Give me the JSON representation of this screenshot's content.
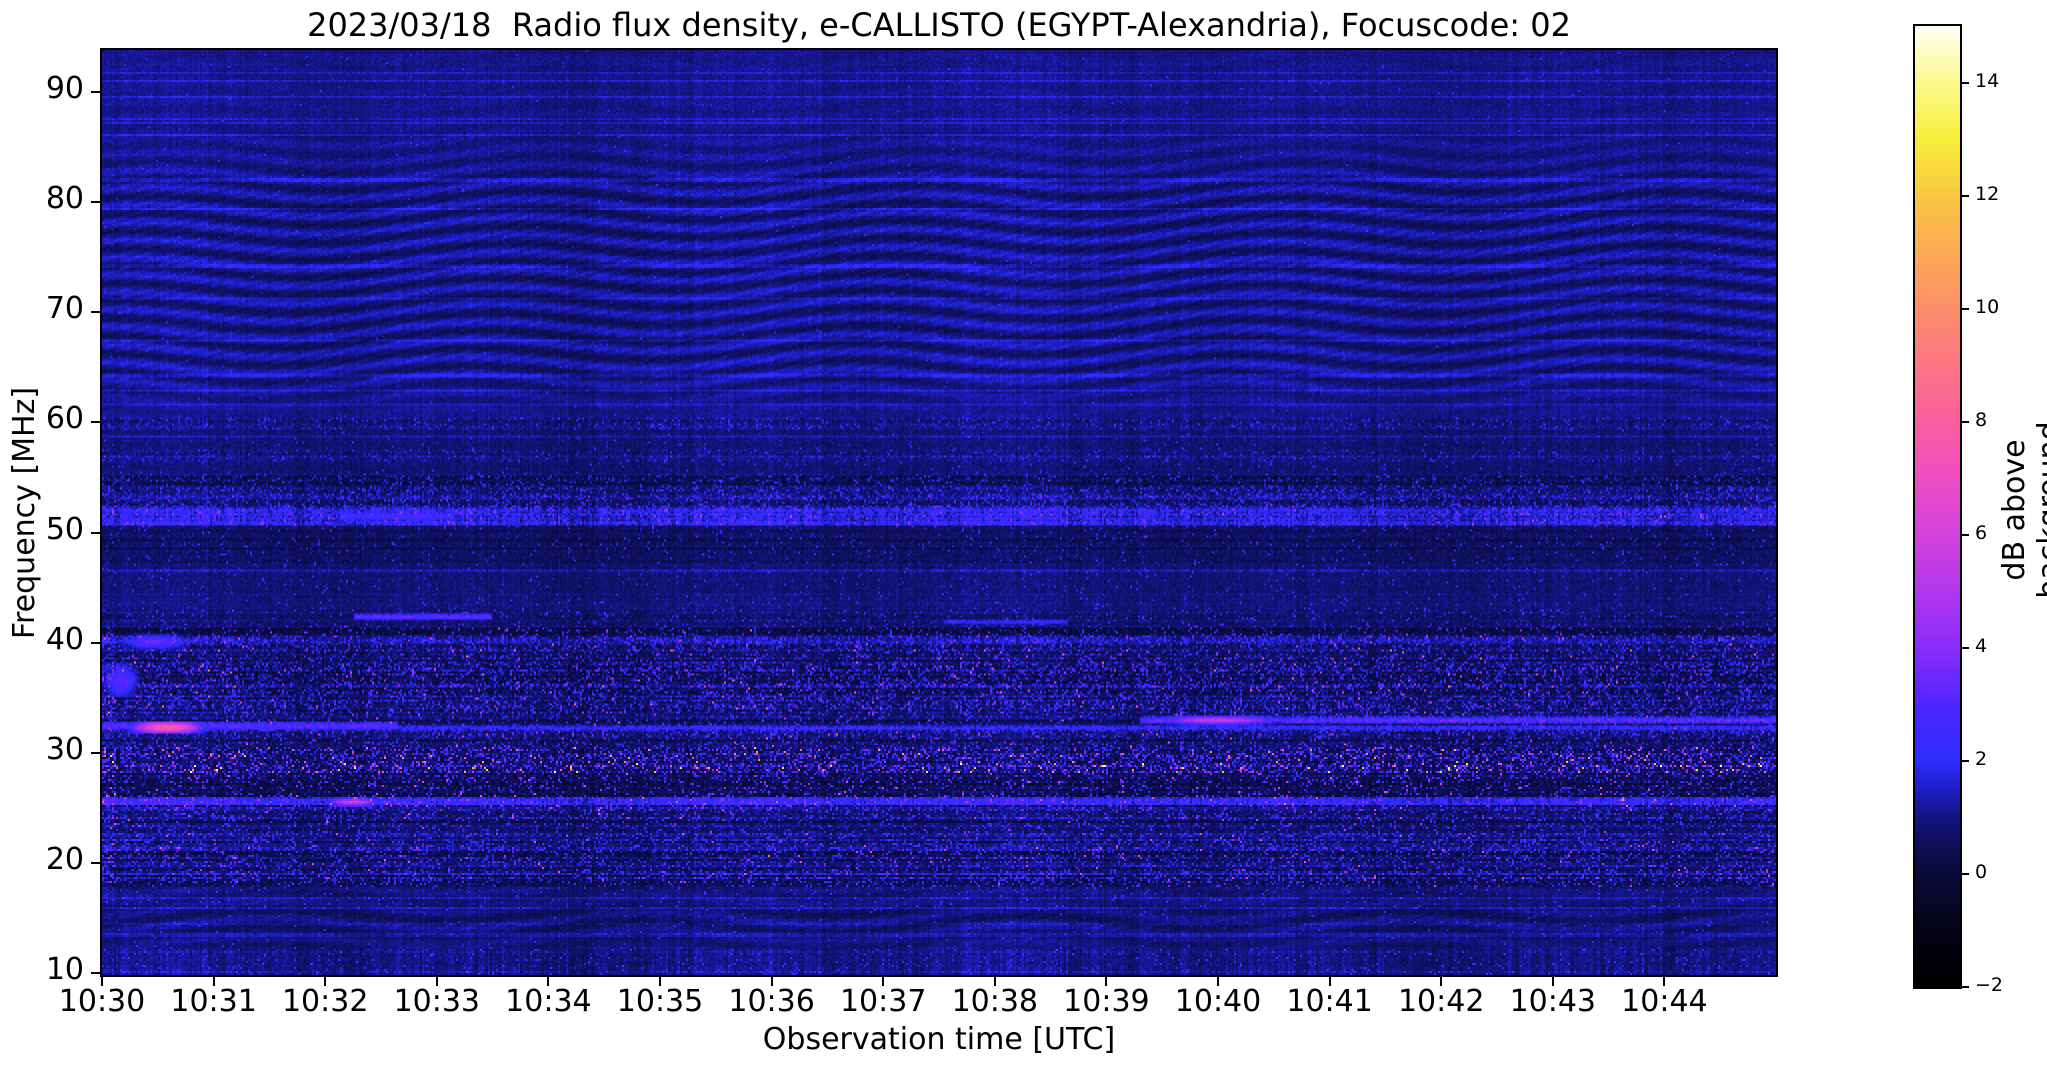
{
  "chart_data": {
    "type": "heatmap",
    "title": "2023/03/18  Radio flux density, e-CALLISTO (EGYPT-Alexandria), Focuscode: 02",
    "xlabel": "Observation time [UTC]",
    "ylabel": "Frequency [MHz]",
    "x_tick_labels": [
      "10:30",
      "10:31",
      "10:32",
      "10:33",
      "10:34",
      "10:35",
      "10:36",
      "10:37",
      "10:38",
      "10:39",
      "10:40",
      "10:41",
      "10:42",
      "10:43",
      "10:44"
    ],
    "x_range_minutes": [
      0,
      15
    ],
    "y_ticks": [
      90,
      80,
      70,
      60,
      50,
      40,
      30,
      20,
      10
    ],
    "y_range_mhz": [
      9.85,
      93.8
    ],
    "legend_position": "right-colorbar",
    "grid": false,
    "colorbar": {
      "label": "dB above background",
      "tick_values": [
        14,
        12,
        10,
        8,
        6,
        4,
        2,
        0,
        -2
      ],
      "tick_labels": [
        "14",
        "12",
        "10",
        "8",
        "6",
        "4",
        "2",
        "0",
        "−2"
      ],
      "vmin": -2,
      "vmax": 15
    },
    "colormap_anchors": [
      [
        -2,
        [
          0,
          0,
          0
        ]
      ],
      [
        -1,
        [
          3,
          3,
          22
        ]
      ],
      [
        0,
        [
          10,
          10,
          58
        ]
      ],
      [
        0.5,
        [
          14,
          14,
          85
        ]
      ],
      [
        1,
        [
          20,
          20,
          130
        ]
      ],
      [
        1.5,
        [
          30,
          30,
          195
        ]
      ],
      [
        2,
        [
          45,
          45,
          255
        ]
      ],
      [
        3,
        [
          80,
          38,
          255
        ]
      ],
      [
        4,
        [
          138,
          45,
          250
        ]
      ],
      [
        5,
        [
          178,
          55,
          238
        ]
      ],
      [
        6,
        [
          212,
          66,
          222
        ]
      ],
      [
        7,
        [
          238,
          78,
          195
        ]
      ],
      [
        8,
        [
          250,
          95,
          160
        ]
      ],
      [
        9,
        [
          252,
          118,
          132
        ]
      ],
      [
        10,
        [
          253,
          142,
          108
        ]
      ],
      [
        11,
        [
          252,
          170,
          85
        ]
      ],
      [
        12,
        [
          250,
          200,
          65
        ]
      ],
      [
        13,
        [
          248,
          238,
          60
        ]
      ],
      [
        14,
        [
          252,
          248,
          140
        ]
      ],
      [
        15,
        [
          255,
          255,
          245
        ]
      ]
    ],
    "noise_seed": 1337,
    "bands": [
      {
        "f": [
          9.8,
          12.2
        ],
        "base": 1.05,
        "noise": 0.55,
        "colVar": 0.5,
        "rowVar": 0.15,
        "speckle": 0.1,
        "speckleMax": 2.5
      },
      {
        "f": [
          12.2,
          13.8
        ],
        "base": 0.9,
        "noise": 0.4,
        "colVar": 0.3,
        "rowVar": 0.1,
        "speckle": 0.04,
        "speckleMax": 2,
        "ripple": 0.18
      },
      {
        "f": [
          13.8,
          15.6
        ],
        "base": 0.8,
        "noise": 0.45,
        "colVar": 0.3,
        "rowVar": 0.2,
        "speckle": 0.05,
        "speckleMax": 2,
        "ripple": 0.32
      },
      {
        "f": [
          15.6,
          17.8
        ],
        "base": 0.92,
        "noise": 0.45,
        "colVar": 0.3,
        "rowVar": 0.15,
        "speckle": 0.07,
        "speckleMax": 2.5,
        "ripple": 0.15
      },
      {
        "f": [
          17.8,
          21.5
        ],
        "base": 0.75,
        "noise": 0.95,
        "colVar": 0.4,
        "rowVar": 0.5,
        "speckle": 0.32,
        "speckleMax": 3.5,
        "hot": 0.01,
        "hotMax": 6,
        "darkRow": 0.18
      },
      {
        "f": [
          21.5,
          24.2
        ],
        "base": 0.85,
        "noise": 0.85,
        "colVar": 0.38,
        "rowVar": 0.4,
        "speckle": 0.28,
        "speckleMax": 3.2,
        "hot": 0.008,
        "hotMax": 5.5,
        "darkRow": 0.12
      },
      {
        "f": [
          24.2,
          25.2
        ],
        "base": 0.95,
        "noise": 0.9,
        "colVar": 0.38,
        "rowVar": 0.4,
        "speckle": 0.3,
        "speckleMax": 3.5,
        "hot": 0.01,
        "hotMax": 6
      },
      {
        "f": [
          25.2,
          25.9
        ],
        "base": 1.7,
        "noise": 0.9,
        "colVar": 0.32,
        "rowVar": 0.3,
        "speckle": 0.35,
        "speckleMax": 3,
        "hot": 0.015,
        "hotMax": 6.5
      },
      {
        "f": [
          25.9,
          28.1
        ],
        "base": 0.45,
        "noise": 1.1,
        "colVar": 0.6,
        "rowVar": 0.6,
        "speckle": 0.3,
        "speckleMax": 4,
        "hot": 0.02,
        "hotMax": 7,
        "darkRow": 0.25
      },
      {
        "f": [
          28.1,
          29.2
        ],
        "base": 0.7,
        "noise": 1.2,
        "colVar": 0.5,
        "rowVar": 0.5,
        "speckle": 0.45,
        "speckleMax": 5,
        "hot": 0.05,
        "hotMax": 13,
        "darkRow": 0.15
      },
      {
        "f": [
          29.2,
          30.6
        ],
        "base": 0.75,
        "noise": 1.1,
        "colVar": 0.45,
        "rowVar": 0.5,
        "speckle": 0.4,
        "speckleMax": 4.5,
        "hot": 0.03,
        "hotMax": 10,
        "darkRow": 0.15
      },
      {
        "f": [
          30.6,
          31.9
        ],
        "base": 0.65,
        "noise": 0.95,
        "colVar": 0.4,
        "rowVar": 0.45,
        "speckle": 0.3,
        "speckleMax": 3.5,
        "hot": 0.012,
        "hotMax": 8,
        "darkRow": 0.2
      },
      {
        "f": [
          31.9,
          33.6
        ],
        "base": 0.75,
        "noise": 0.8,
        "colVar": 0.4,
        "rowVar": 0.4,
        "speckle": 0.22,
        "speckleMax": 3,
        "hot": 0.006,
        "hotMax": 6,
        "darkRow": 0.25
      },
      {
        "f": [
          33.6,
          35.4
        ],
        "base": 0.8,
        "noise": 1.1,
        "colVar": 0.45,
        "rowVar": 0.5,
        "speckle": 0.35,
        "speckleMax": 3.8,
        "hot": 0.012,
        "hotMax": 7,
        "darkRow": 0.2
      },
      {
        "f": [
          35.4,
          38.2
        ],
        "base": 0.55,
        "noise": 1.25,
        "colVar": 0.6,
        "rowVar": 0.6,
        "speckle": 0.38,
        "speckleMax": 4,
        "hot": 0.01,
        "hotMax": 7,
        "darkRow": 0.3
      },
      {
        "f": [
          38.2,
          39.6
        ],
        "base": 0.75,
        "noise": 1.0,
        "colVar": 0.45,
        "rowVar": 0.45,
        "speckle": 0.28,
        "speckleMax": 3.5,
        "hot": 0.012,
        "hotMax": 7.5,
        "darkRow": 0.15
      },
      {
        "f": [
          39.6,
          40.6
        ],
        "base": 1.05,
        "noise": 1.0,
        "colVar": 0.4,
        "rowVar": 0.4,
        "speckle": 0.3,
        "speckleMax": 3.2,
        "hot": 0.008,
        "hotMax": 6,
        "darkRow": 0.1
      },
      {
        "f": [
          40.6,
          41.4
        ],
        "base": 0.15,
        "noise": 0.85,
        "colVar": 0.5,
        "rowVar": 0.5,
        "speckle": 0.28,
        "speckleMax": 3.5,
        "hot": 0.006,
        "hotMax": 6,
        "darkRow": 0.4
      },
      {
        "f": [
          41.4,
          43.1
        ],
        "base": 0.8,
        "noise": 0.65,
        "colVar": 0.35,
        "rowVar": 0.25,
        "speckle": 0.12,
        "speckleMax": 2.8
      },
      {
        "f": [
          43.1,
          47.2
        ],
        "base": 0.9,
        "noise": 0.5,
        "colVar": 0.3,
        "rowVar": 0.15,
        "speckle": 0.06,
        "speckleMax": 2.2
      },
      {
        "f": [
          47.2,
          50.6
        ],
        "base": 0.6,
        "noise": 0.6,
        "colVar": 0.35,
        "rowVar": 0.25,
        "speckle": 0.1,
        "speckleMax": 2.5,
        "darkRow": 0.1
      },
      {
        "f": [
          50.6,
          52.4
        ],
        "base": 1.6,
        "noise": 1.0,
        "colVar": 0.4,
        "rowVar": 0.35,
        "speckle": 0.4,
        "speckleMax": 3,
        "hot": 0.004,
        "hotMax": 5
      },
      {
        "f": [
          52.4,
          55.2
        ],
        "base": 0.85,
        "noise": 0.95,
        "colVar": 0.4,
        "rowVar": 0.45,
        "speckle": 0.3,
        "speckleMax": 3,
        "darkRow": 0.15
      },
      {
        "f": [
          55.2,
          56.4
        ],
        "base": 0.85,
        "noise": 0.5,
        "colVar": 0.3,
        "rowVar": 0.15,
        "speckle": 0.07,
        "speckleMax": 2.2
      },
      {
        "f": [
          56.4,
          57.6
        ],
        "base": 0.9,
        "noise": 0.7,
        "colVar": 0.35,
        "rowVar": 0.3,
        "speckle": 0.15,
        "speckleMax": 2.5
      },
      {
        "f": [
          57.6,
          59.4
        ],
        "base": 0.9,
        "noise": 0.5,
        "colVar": 0.3,
        "rowVar": 0.15,
        "speckle": 0.05,
        "speckleMax": 2
      },
      {
        "f": [
          59.4,
          60.5
        ],
        "base": 0.95,
        "noise": 0.75,
        "colVar": 0.35,
        "rowVar": 0.3,
        "speckle": 0.15,
        "speckleMax": 2.5
      },
      {
        "f": [
          60.5,
          94.0
        ],
        "base": 1.05,
        "noise": 0.38,
        "colVar": 0.22,
        "rowVar": 0.06,
        "speckle": 0.015,
        "speckleMax": 1.5,
        "ripple": 0.5
      }
    ],
    "features": [
      {
        "type": "blob",
        "f": 32.35,
        "df": 0.45,
        "t0": 0.22,
        "t1": 0.95,
        "v": 8.2
      },
      {
        "type": "line",
        "f": 32.3,
        "df": 0.3,
        "t0": 0,
        "t1": 15,
        "v": 2.5,
        "vary": 0.8
      },
      {
        "type": "line",
        "f": 32.5,
        "df": 0.35,
        "t0": 0,
        "t1": 2.6,
        "v": 3.4,
        "vary": 0.6
      },
      {
        "type": "line",
        "f": 33.0,
        "df": 0.35,
        "t0": 9.35,
        "t1": 15,
        "v": 3.3,
        "vary": 0.9
      },
      {
        "type": "blob",
        "f": 33.0,
        "df": 0.3,
        "t0": 9.4,
        "t1": 10.6,
        "v": 5.8
      },
      {
        "type": "line",
        "f": 42.35,
        "df": 0.3,
        "t0": 2.3,
        "t1": 3.45,
        "v": 3.4,
        "vary": 0.5
      },
      {
        "type": "line",
        "f": 41.9,
        "df": 0.25,
        "t0": 7.6,
        "t1": 8.6,
        "v": 2.4,
        "vary": 0.5
      },
      {
        "type": "blob",
        "f": 40.1,
        "df": 0.5,
        "t0": 0.15,
        "t1": 0.8,
        "v": 3.6
      },
      {
        "type": "blob",
        "f": 25.55,
        "df": 0.3,
        "t0": 2.0,
        "t1": 2.5,
        "v": 6.0
      },
      {
        "type": "blob",
        "f": 36.6,
        "df": 1.2,
        "t0": 0.0,
        "t1": 0.35,
        "v": 3.2
      },
      {
        "type": "line",
        "f": 51.5,
        "df": 0.5,
        "t0": 2.2,
        "t1": 3.1,
        "v": 2.8,
        "vary": 0.5
      }
    ]
  }
}
